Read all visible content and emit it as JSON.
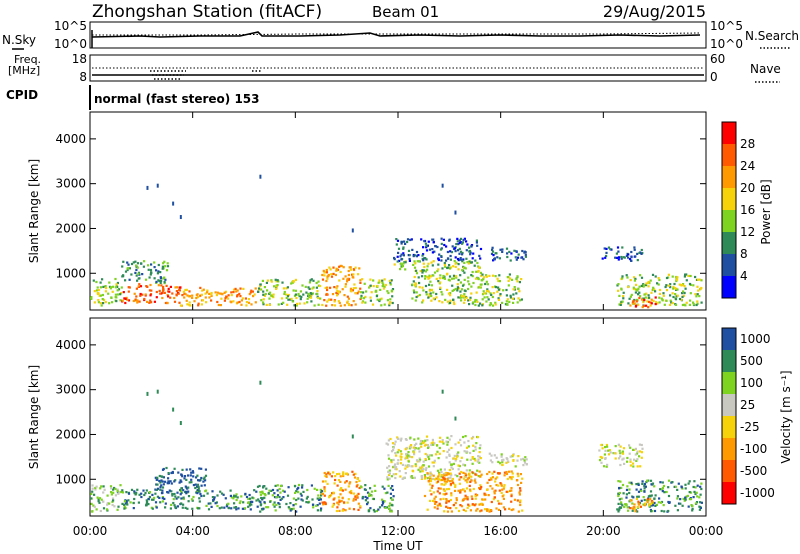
{
  "header": {
    "title": "Zhongshan Station (fitACF)",
    "beam": "Beam 01",
    "date": "29/Aug/2015"
  },
  "noise_panel": {
    "left_label": "N.Sky",
    "left_ticks": [
      "10^5",
      "10^0"
    ],
    "right_ticks": [
      "10^5",
      "10^0"
    ],
    "right_label": "N.Search"
  },
  "freq_panel": {
    "left_label_line1": "Freq.",
    "left_label_line2": "[MHz]",
    "left_ticks": [
      "18",
      "8"
    ],
    "right_ticks": [
      "60",
      "0"
    ],
    "right_label": "Nave"
  },
  "cpid_panel": {
    "label": "CPID",
    "text": "normal (fast stereo) 153"
  },
  "x_axis": {
    "label": "Time UT",
    "ticks": [
      "00:00",
      "04:00",
      "08:00",
      "12:00",
      "16:00",
      "20:00",
      "00:00"
    ]
  },
  "colors": {
    "power": [
      "#0000ff",
      "#1f4fa0",
      "#2e8b57",
      "#7ed321",
      "#f5d20a",
      "#ff9900",
      "#ff5a00",
      "#ff0000"
    ],
    "velocity": [
      "#ff0000",
      "#ff5a00",
      "#ff9900",
      "#f5d20a",
      "#c8c8c0",
      "#7ed321",
      "#2e8b57",
      "#1f4fa0"
    ]
  },
  "chart_data": [
    {
      "type": "heatmap",
      "panel": "power",
      "ylabel": "Slant Range [km]",
      "y_ticks": [
        "1000",
        "2000",
        "3000",
        "4000"
      ],
      "ylim": [
        180,
        4600
      ],
      "xlim": [
        0,
        24
      ],
      "colorbar_label": "Power [dB]",
      "colorbar_ticks": [
        "4",
        "8",
        "12",
        "16",
        "20",
        "24",
        "28"
      ],
      "regions": [
        {
          "t0": 0.0,
          "t1": 1.2,
          "r0": 300,
          "r1": 900,
          "level": 3
        },
        {
          "t0": 1.2,
          "t1": 3.5,
          "r0": 350,
          "r1": 800,
          "level": 6
        },
        {
          "t0": 1.2,
          "t1": 3.0,
          "r0": 800,
          "r1": 1300,
          "level": 2
        },
        {
          "t0": 3.5,
          "t1": 6.5,
          "r0": 300,
          "r1": 700,
          "level": 5
        },
        {
          "t0": 6.5,
          "t1": 9.0,
          "r0": 300,
          "r1": 900,
          "level": 3
        },
        {
          "t0": 9.0,
          "t1": 10.5,
          "r0": 300,
          "r1": 1200,
          "level": 5
        },
        {
          "t0": 10.5,
          "t1": 11.8,
          "r0": 300,
          "r1": 900,
          "level": 3
        },
        {
          "t0": 11.8,
          "t1": 15.2,
          "r0": 1300,
          "r1": 1800,
          "level": 1
        },
        {
          "t0": 11.8,
          "t1": 15.2,
          "r0": 1000,
          "r1": 1300,
          "level": 3
        },
        {
          "t0": 12.5,
          "t1": 16.8,
          "r0": 300,
          "r1": 1000,
          "level": 3
        },
        {
          "t0": 15.5,
          "t1": 17.0,
          "r0": 1300,
          "r1": 1600,
          "level": 1
        },
        {
          "t0": 19.8,
          "t1": 21.5,
          "r0": 1300,
          "r1": 1600,
          "level": 1
        },
        {
          "t0": 20.5,
          "t1": 23.8,
          "r0": 300,
          "r1": 1000,
          "level": 3
        },
        {
          "t0": 21.0,
          "t1": 22.0,
          "r0": 250,
          "r1": 500,
          "level": 6
        }
      ]
    },
    {
      "type": "heatmap",
      "panel": "velocity",
      "ylabel": "Slant Range [km]",
      "y_ticks": [
        "1000",
        "2000",
        "3000",
        "4000"
      ],
      "ylim": [
        180,
        4600
      ],
      "xlim": [
        0,
        24
      ],
      "colorbar_label": "Velocity [m s⁻¹]",
      "colorbar_ticks": [
        "1000",
        "500",
        "100",
        "25",
        "-25",
        "-100",
        "-500",
        "-1000"
      ],
      "regions": [
        {
          "t0": 0.0,
          "t1": 1.2,
          "r0": 300,
          "r1": 900,
          "level": 5
        },
        {
          "t0": 1.2,
          "t1": 6.5,
          "r0": 350,
          "r1": 800,
          "level": 6
        },
        {
          "t0": 2.5,
          "t1": 4.5,
          "r0": 700,
          "r1": 1300,
          "level": 7
        },
        {
          "t0": 6.5,
          "t1": 9.0,
          "r0": 300,
          "r1": 900,
          "level": 6
        },
        {
          "t0": 9.0,
          "t1": 10.5,
          "r0": 300,
          "r1": 1200,
          "level": 2
        },
        {
          "t0": 10.5,
          "t1": 11.8,
          "r0": 300,
          "r1": 900,
          "level": 6
        },
        {
          "t0": 11.5,
          "t1": 15.2,
          "r0": 1000,
          "r1": 2000,
          "level": 4
        },
        {
          "t0": 13.0,
          "t1": 16.8,
          "r0": 300,
          "r1": 1200,
          "level": 2
        },
        {
          "t0": 15.5,
          "t1": 17.0,
          "r0": 1300,
          "r1": 1600,
          "level": 4
        },
        {
          "t0": 19.8,
          "t1": 21.5,
          "r0": 1300,
          "r1": 1800,
          "level": 4
        },
        {
          "t0": 20.5,
          "t1": 23.8,
          "r0": 300,
          "r1": 1000,
          "level": 6
        },
        {
          "t0": 21.0,
          "t1": 22.0,
          "r0": 300,
          "r1": 600,
          "level": 2
        }
      ]
    }
  ]
}
